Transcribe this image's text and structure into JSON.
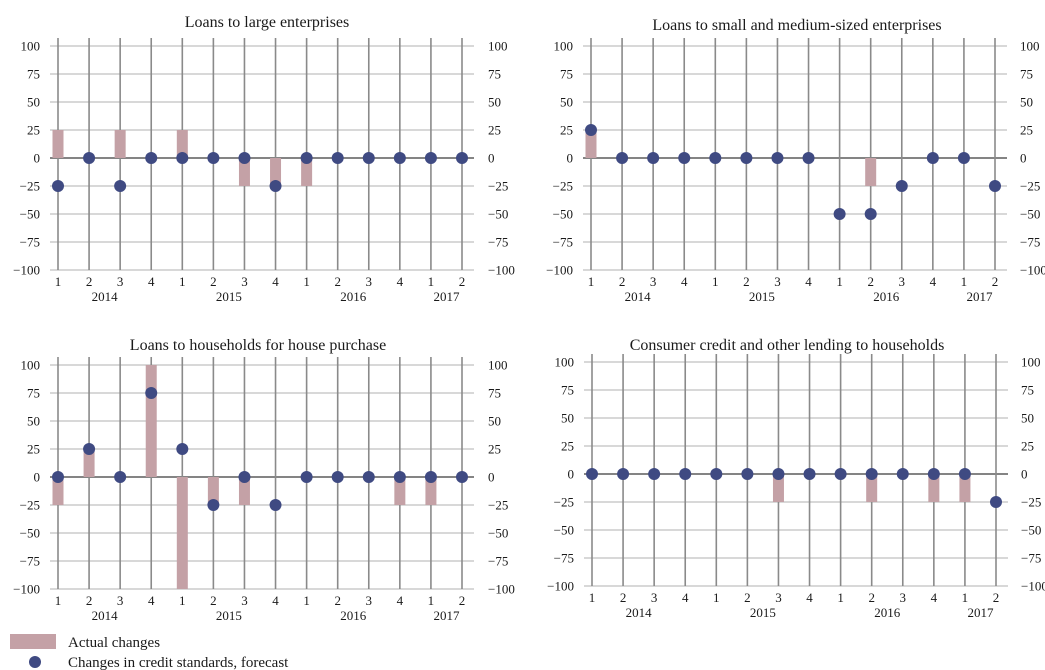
{
  "chart_data": [
    {
      "type": "bar",
      "title": "Loans to large enterprises",
      "categories": [
        "1",
        "2",
        "3",
        "4",
        "1",
        "2",
        "3",
        "4",
        "1",
        "2",
        "3",
        "4",
        "1",
        "2"
      ],
      "years": [
        {
          "label": "2014",
          "start": 0,
          "end": 3
        },
        {
          "label": "2015",
          "start": 4,
          "end": 7
        },
        {
          "label": "2016",
          "start": 8,
          "end": 11
        },
        {
          "label": "2017",
          "start": 12,
          "end": 13
        }
      ],
      "ylim": [
        -100,
        100
      ],
      "yticks": [
        100,
        75,
        50,
        25,
        0,
        -25,
        -50,
        -75,
        -100
      ],
      "series": [
        {
          "name": "Actual changes",
          "kind": "bar",
          "values": [
            25,
            0,
            25,
            0,
            25,
            0,
            -25,
            -25,
            -25,
            0,
            0,
            0,
            0,
            0
          ]
        },
        {
          "name": "Changes in credit standards, forecast",
          "kind": "point",
          "values": [
            -25,
            0,
            -25,
            0,
            0,
            0,
            0,
            -25,
            0,
            0,
            0,
            0,
            0,
            0
          ]
        }
      ]
    },
    {
      "type": "bar",
      "title": "Loans to small and medium-sized enterprises",
      "categories": [
        "1",
        "2",
        "3",
        "4",
        "1",
        "2",
        "3",
        "4",
        "1",
        "2",
        "3",
        "4",
        "1",
        "2"
      ],
      "years": [
        {
          "label": "2014",
          "start": 0,
          "end": 3
        },
        {
          "label": "2015",
          "start": 4,
          "end": 7
        },
        {
          "label": "2016",
          "start": 8,
          "end": 11
        },
        {
          "label": "2017",
          "start": 12,
          "end": 13
        }
      ],
      "ylim": [
        -100,
        100
      ],
      "yticks": [
        100,
        75,
        50,
        25,
        0,
        -25,
        -50,
        -75,
        -100
      ],
      "series": [
        {
          "name": "Actual changes",
          "kind": "bar",
          "values": [
            25,
            0,
            0,
            0,
            0,
            0,
            0,
            0,
            0,
            -25,
            0,
            0,
            0,
            0
          ]
        },
        {
          "name": "Changes in credit standards, forecast",
          "kind": "point",
          "values": [
            25,
            0,
            0,
            0,
            0,
            0,
            0,
            0,
            -50,
            -50,
            -25,
            0,
            0,
            -25
          ]
        }
      ]
    },
    {
      "type": "bar",
      "title": "Loans to households for house purchase",
      "categories": [
        "1",
        "2",
        "3",
        "4",
        "1",
        "2",
        "3",
        "4",
        "1",
        "2",
        "3",
        "4",
        "1",
        "2"
      ],
      "years": [
        {
          "label": "2014",
          "start": 0,
          "end": 3
        },
        {
          "label": "2015",
          "start": 4,
          "end": 7
        },
        {
          "label": "2016",
          "start": 8,
          "end": 11
        },
        {
          "label": "2017",
          "start": 12,
          "end": 13
        }
      ],
      "ylim": [
        -100,
        100
      ],
      "yticks": [
        100,
        75,
        50,
        25,
        0,
        -25,
        -50,
        -75,
        -100
      ],
      "series": [
        {
          "name": "Actual changes",
          "kind": "bar",
          "values": [
            -25,
            25,
            0,
            100,
            -100,
            -25,
            -25,
            0,
            0,
            0,
            0,
            -25,
            -25,
            0
          ]
        },
        {
          "name": "Changes in credit standards, forecast",
          "kind": "point",
          "values": [
            0,
            25,
            0,
            75,
            25,
            -25,
            0,
            -25,
            0,
            0,
            0,
            0,
            0,
            0
          ]
        }
      ]
    },
    {
      "type": "bar",
      "title": "Consumer credit and other lending to households",
      "categories": [
        "1",
        "2",
        "3",
        "4",
        "1",
        "2",
        "3",
        "4",
        "1",
        "2",
        "3",
        "4",
        "1",
        "2"
      ],
      "years": [
        {
          "label": "2014",
          "start": 0,
          "end": 3
        },
        {
          "label": "2015",
          "start": 4,
          "end": 7
        },
        {
          "label": "2016",
          "start": 8,
          "end": 11
        },
        {
          "label": "2017",
          "start": 12,
          "end": 13
        }
      ],
      "ylim": [
        -100,
        100
      ],
      "yticks": [
        100,
        75,
        50,
        25,
        0,
        -25,
        -50,
        -75,
        -100
      ],
      "series": [
        {
          "name": "Actual changes",
          "kind": "bar",
          "values": [
            0,
            0,
            0,
            0,
            0,
            0,
            -25,
            0,
            0,
            -25,
            0,
            -25,
            -25,
            0
          ]
        },
        {
          "name": "Changes in credit standards, forecast",
          "kind": "point",
          "values": [
            0,
            0,
            0,
            0,
            0,
            0,
            0,
            0,
            0,
            0,
            0,
            0,
            0,
            -25
          ]
        }
      ]
    }
  ],
  "legend": {
    "placement": "bottom-left",
    "items": [
      {
        "label": "Actual changes",
        "marker": "bar"
      },
      {
        "label": "Changes in credit standards, forecast",
        "marker": "point"
      }
    ]
  },
  "colors": {
    "bar": "#c4a1a6",
    "point": "#3f4a82",
    "grid": "#b0b0b0",
    "quarter_line": "#8a8a8a",
    "axis": "#3a3a3a"
  }
}
